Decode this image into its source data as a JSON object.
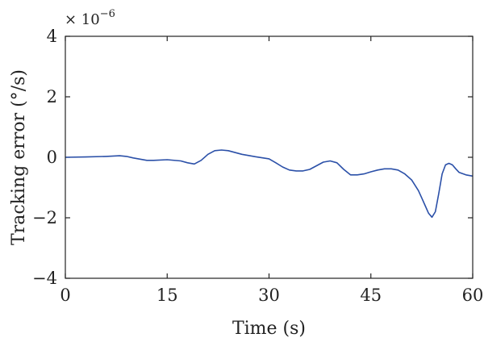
{
  "chart_data": {
    "type": "line",
    "title": "",
    "xlabel": "Time (s)",
    "ylabel": "Tracking error (°/s)",
    "y_multiplier": "× 10",
    "y_multiplier_exponent": "−6",
    "xlim": [
      0,
      60
    ],
    "ylim": [
      -4,
      4
    ],
    "x_ticks": [
      0,
      15,
      30,
      45,
      60
    ],
    "x_tick_labels": [
      "0",
      "15",
      "30",
      "45",
      "60"
    ],
    "y_ticks": [
      4,
      2,
      0,
      -2,
      -4
    ],
    "y_tick_labels": [
      "4",
      "2",
      "0",
      "−2",
      "−4"
    ],
    "grid": false,
    "series": [
      {
        "color": "#2b50a8",
        "x": [
          0,
          3,
          6,
          8,
          9,
          10,
          12,
          13,
          15,
          17,
          18,
          19,
          20,
          21,
          22,
          23,
          24,
          26,
          28,
          30,
          31,
          32,
          33,
          34,
          35,
          36,
          37,
          38,
          39,
          40,
          41,
          42,
          43,
          44,
          45,
          46,
          47,
          48,
          49,
          50,
          51,
          52,
          52.5,
          53,
          53.5,
          54,
          54.5,
          55,
          55.5,
          56,
          56.5,
          57,
          57.5,
          58,
          59,
          60
        ],
        "y": [
          0.0,
          0.01,
          0.03,
          0.05,
          0.03,
          -0.02,
          -0.1,
          -0.1,
          -0.08,
          -0.12,
          -0.18,
          -0.22,
          -0.1,
          0.1,
          0.22,
          0.24,
          0.22,
          0.1,
          0.02,
          -0.05,
          -0.18,
          -0.32,
          -0.42,
          -0.45,
          -0.45,
          -0.4,
          -0.28,
          -0.16,
          -0.12,
          -0.18,
          -0.4,
          -0.58,
          -0.58,
          -0.55,
          -0.48,
          -0.42,
          -0.38,
          -0.38,
          -0.42,
          -0.55,
          -0.75,
          -1.1,
          -1.35,
          -1.6,
          -1.85,
          -1.98,
          -1.8,
          -1.2,
          -0.55,
          -0.25,
          -0.2,
          -0.25,
          -0.38,
          -0.5,
          -0.58,
          -0.62
        ]
      }
    ]
  }
}
